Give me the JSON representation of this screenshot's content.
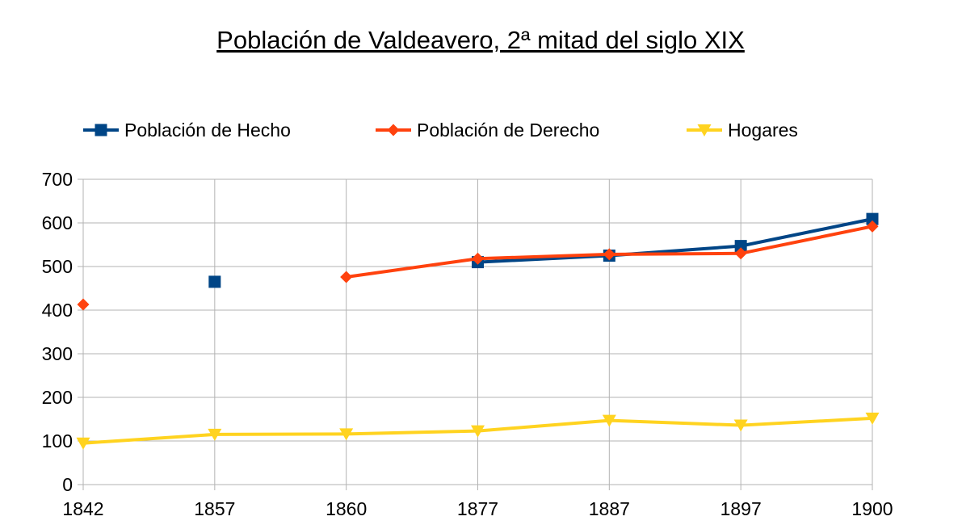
{
  "chart_data": {
    "type": "line",
    "title": "Población de Valdeavero, 2ª mitad del siglo XIX",
    "xlabel": "",
    "ylabel": "",
    "categories": [
      "1842",
      "1857",
      "1860",
      "1877",
      "1887",
      "1897",
      "1900"
    ],
    "ylim": [
      0,
      700
    ],
    "yticks": [
      0,
      100,
      200,
      300,
      400,
      500,
      600,
      700
    ],
    "grid": true,
    "legend_position": "top",
    "series": [
      {
        "name": "Población de Hecho",
        "color": "#004586",
        "marker": "square",
        "values": [
          null,
          465,
          null,
          510,
          525,
          547,
          609
        ]
      },
      {
        "name": "Población de Derecho",
        "color": "#ff420e",
        "marker": "diamond",
        "values": [
          413,
          null,
          476,
          518,
          528,
          530,
          592
        ]
      },
      {
        "name": "Hogares",
        "color": "#ffd320",
        "marker": "triangle-down",
        "values": [
          95,
          115,
          116,
          123,
          147,
          136,
          152
        ]
      }
    ]
  }
}
